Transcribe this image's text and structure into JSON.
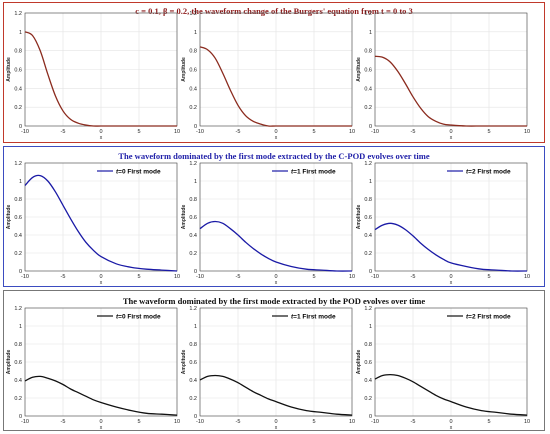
{
  "figure": {
    "panels": [
      {
        "title": "c = 0.1, β = 0.2, the waveform change of the Burgers' equation from t = 0 to 3",
        "title_color": "#8b1a1a",
        "border_color": "#c0392b"
      },
      {
        "title": "The waveform dominated by the first mode extracted by the C-POD evolves over time",
        "title_color": "#1f1fa8",
        "border_color": "#3b4cc0"
      },
      {
        "title": "The waveform dominated by the first mode extracted by the POD evolves over time",
        "title_color": "#111111",
        "border_color": "#777777"
      }
    ]
  },
  "chart_data": [
    {
      "type": "line",
      "panel": 0,
      "xlabel": "x",
      "ylabel": "Amplitude",
      "xlim": [
        -10,
        10
      ],
      "ylim": [
        0,
        1.2
      ],
      "xticks": [
        "-10",
        "-5",
        "0",
        "5",
        "10"
      ],
      "yticks": [
        "0",
        "0.2",
        "0.4",
        "0.6",
        "0.8",
        "1",
        "1.2"
      ],
      "grid": true,
      "color": "#8b2b1e",
      "x": [
        -10,
        -9,
        -8,
        -7,
        -6,
        -5,
        -4,
        -3,
        -2,
        -1,
        0,
        2,
        4,
        6,
        8,
        10
      ],
      "y": [
        1.0,
        0.96,
        0.8,
        0.55,
        0.32,
        0.16,
        0.07,
        0.03,
        0.01,
        0.0,
        0.0,
        0.0,
        0.0,
        0.0,
        0.0,
        0.0
      ]
    },
    {
      "type": "line",
      "panel": 0,
      "xlabel": "x",
      "ylabel": "Amplitude",
      "xlim": [
        -10,
        10
      ],
      "ylim": [
        0,
        1.2
      ],
      "xticks": [
        "-10",
        "-5",
        "0",
        "5",
        "10"
      ],
      "yticks": [
        "0",
        "0.2",
        "0.4",
        "0.6",
        "0.8",
        "1",
        "1.2"
      ],
      "grid": true,
      "color": "#8b2b1e",
      "x": [
        -10,
        -9,
        -8,
        -7,
        -6,
        -5,
        -4,
        -3,
        -2,
        -1,
        0,
        2,
        4,
        6,
        8,
        10
      ],
      "y": [
        0.84,
        0.81,
        0.72,
        0.56,
        0.38,
        0.22,
        0.11,
        0.05,
        0.02,
        0.0,
        0.0,
        0.0,
        0.0,
        0.0,
        0.0,
        0.0
      ]
    },
    {
      "type": "line",
      "panel": 0,
      "xlabel": "x",
      "ylabel": "Amplitude",
      "xlim": [
        -10,
        10
      ],
      "ylim": [
        0,
        1.2
      ],
      "xticks": [
        "-10",
        "-5",
        "0",
        "5",
        "10"
      ],
      "yticks": [
        "0",
        "0.2",
        "0.4",
        "0.6",
        "0.8",
        "1",
        "1.2"
      ],
      "grid": true,
      "color": "#8b2b1e",
      "x": [
        -10,
        -9,
        -8,
        -7,
        -6,
        -5,
        -4,
        -3,
        -2,
        -1,
        0,
        2,
        4,
        6,
        8,
        10
      ],
      "y": [
        0.74,
        0.73,
        0.68,
        0.58,
        0.45,
        0.31,
        0.19,
        0.1,
        0.05,
        0.02,
        0.01,
        0.0,
        0.0,
        0.0,
        0.0,
        0.0
      ]
    },
    {
      "type": "line",
      "panel": 1,
      "xlabel": "x",
      "ylabel": "Amplitude",
      "xlim": [
        -10,
        10
      ],
      "ylim": [
        0,
        1.2
      ],
      "xticks": [
        "-10",
        "-5",
        "0",
        "5",
        "10"
      ],
      "yticks": [
        "0",
        "0.2",
        "0.4",
        "0.6",
        "0.8",
        "1",
        "1.2"
      ],
      "grid": true,
      "color": "#1a1aa6",
      "legend": {
        "t": "t",
        "rest": "=0 First mode"
      },
      "x": [
        -10,
        -9,
        -8,
        -7,
        -6,
        -5,
        -4,
        -3,
        -2,
        -1,
        0,
        2,
        4,
        6,
        8,
        10
      ],
      "y": [
        0.95,
        1.04,
        1.06,
        1.0,
        0.88,
        0.73,
        0.58,
        0.44,
        0.32,
        0.23,
        0.16,
        0.08,
        0.04,
        0.02,
        0.01,
        0.0
      ]
    },
    {
      "type": "line",
      "panel": 1,
      "xlabel": "x",
      "ylabel": "Amplitude",
      "xlim": [
        -10,
        10
      ],
      "ylim": [
        0,
        1.2
      ],
      "xticks": [
        "-10",
        "-5",
        "0",
        "5",
        "10"
      ],
      "yticks": [
        "0",
        "0.2",
        "0.4",
        "0.6",
        "0.8",
        "1",
        "1.2"
      ],
      "grid": true,
      "color": "#1a1aa6",
      "legend": {
        "t": "t",
        "rest": "=1 First mode"
      },
      "x": [
        -10,
        -9,
        -8,
        -7,
        -6,
        -5,
        -4,
        -3,
        -2,
        -1,
        0,
        2,
        4,
        6,
        8,
        10
      ],
      "y": [
        0.47,
        0.53,
        0.55,
        0.53,
        0.47,
        0.4,
        0.32,
        0.25,
        0.19,
        0.14,
        0.1,
        0.05,
        0.02,
        0.01,
        0.0,
        0.0
      ]
    },
    {
      "type": "line",
      "panel": 1,
      "xlabel": "x",
      "ylabel": "Amplitude",
      "xlim": [
        -10,
        10
      ],
      "ylim": [
        0,
        1.2
      ],
      "xticks": [
        "-10",
        "-5",
        "0",
        "5",
        "10"
      ],
      "yticks": [
        "0",
        "0.2",
        "0.4",
        "0.6",
        "0.8",
        "1",
        "1.2"
      ],
      "grid": true,
      "color": "#1a1aa6",
      "legend": {
        "t": "t",
        "rest": "=2 First mode"
      },
      "x": [
        -10,
        -9,
        -8,
        -7,
        -6,
        -5,
        -4,
        -3,
        -2,
        -1,
        0,
        2,
        4,
        6,
        8,
        10
      ],
      "y": [
        0.46,
        0.51,
        0.53,
        0.51,
        0.46,
        0.39,
        0.31,
        0.24,
        0.18,
        0.13,
        0.09,
        0.05,
        0.02,
        0.01,
        0.0,
        0.0
      ]
    },
    {
      "type": "line",
      "panel": 2,
      "xlabel": "x",
      "ylabel": "Amplitude",
      "xlim": [
        -10,
        10
      ],
      "ylim": [
        0,
        1.2
      ],
      "xticks": [
        "-10",
        "-5",
        "0",
        "5",
        "10"
      ],
      "yticks": [
        "0",
        "0.2",
        "0.4",
        "0.6",
        "0.8",
        "1",
        "1.2"
      ],
      "grid": true,
      "color": "#111111",
      "legend": {
        "t": "t",
        "rest": "=0 First mode"
      },
      "x": [
        -10,
        -9,
        -8,
        -7,
        -6,
        -5,
        -4,
        -3,
        -2,
        -1,
        0,
        2,
        4,
        6,
        8,
        10
      ],
      "y": [
        0.39,
        0.43,
        0.44,
        0.42,
        0.39,
        0.35,
        0.3,
        0.26,
        0.22,
        0.18,
        0.15,
        0.1,
        0.06,
        0.03,
        0.02,
        0.01
      ]
    },
    {
      "type": "line",
      "panel": 2,
      "xlabel": "x",
      "ylabel": "Amplitude",
      "xlim": [
        -10,
        10
      ],
      "ylim": [
        0,
        1.2
      ],
      "xticks": [
        "-10",
        "-5",
        "0",
        "5",
        "10"
      ],
      "yticks": [
        "0",
        "0.2",
        "0.4",
        "0.6",
        "0.8",
        "1",
        "1.2"
      ],
      "grid": true,
      "color": "#111111",
      "legend": {
        "t": "t",
        "rest": "=1 First mode"
      },
      "x": [
        -10,
        -9,
        -8,
        -7,
        -6,
        -5,
        -4,
        -3,
        -2,
        -1,
        0,
        2,
        4,
        6,
        8,
        10
      ],
      "y": [
        0.4,
        0.44,
        0.45,
        0.44,
        0.41,
        0.37,
        0.32,
        0.27,
        0.23,
        0.19,
        0.16,
        0.1,
        0.06,
        0.04,
        0.02,
        0.01
      ]
    },
    {
      "type": "line",
      "panel": 2,
      "xlabel": "x",
      "ylabel": "Amplitude",
      "xlim": [
        -10,
        10
      ],
      "ylim": [
        0,
        1.2
      ],
      "xticks": [
        "-10",
        "-5",
        "0",
        "5",
        "10"
      ],
      "yticks": [
        "0",
        "0.2",
        "0.4",
        "0.6",
        "0.8",
        "1",
        "1.2"
      ],
      "grid": true,
      "color": "#111111",
      "legend": {
        "t": "t",
        "rest": "=2 First mode"
      },
      "x": [
        -10,
        -9,
        -8,
        -7,
        -6,
        -5,
        -4,
        -3,
        -2,
        -1,
        0,
        2,
        4,
        6,
        8,
        10
      ],
      "y": [
        0.41,
        0.45,
        0.46,
        0.45,
        0.42,
        0.38,
        0.33,
        0.28,
        0.23,
        0.19,
        0.16,
        0.1,
        0.06,
        0.04,
        0.02,
        0.01
      ]
    }
  ]
}
